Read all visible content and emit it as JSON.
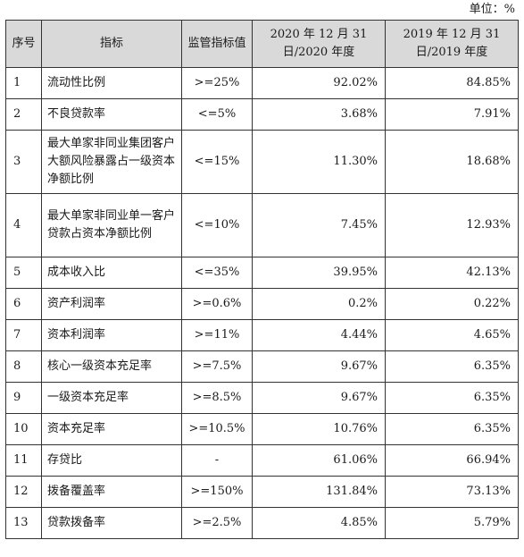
{
  "unit_label": "单位：%",
  "headers": {
    "index": "序号",
    "indicator": "指标",
    "standard": "监管指标值",
    "y2020": "2020 年 12 月 31 日/2020 年度",
    "y2019": "2019 年 12 月 31 日/2019 年度"
  },
  "rows": [
    {
      "no": "1",
      "name": "流动性比例",
      "std": ">=25%",
      "v2020": "92.02%",
      "v2019": "84.85%"
    },
    {
      "no": "2",
      "name": "不良贷款率",
      "std": "<=5%",
      "v2020": "3.68%",
      "v2019": "7.91%"
    },
    {
      "no": "3",
      "name": "最大单家非同业集团客户大额风险暴露占一级资本净额比例",
      "std": "<=15%",
      "v2020": "11.30%",
      "v2019": "18.68%"
    },
    {
      "no": "4",
      "name": "最大单家非同业单一客户贷款占资本净额比例",
      "std": "<=10%",
      "v2020": "7.45%",
      "v2019": "12.93%"
    },
    {
      "no": "5",
      "name": "成本收入比",
      "std": "<=35%",
      "v2020": "39.95%",
      "v2019": "42.13%"
    },
    {
      "no": "6",
      "name": "资产利润率",
      "std": ">=0.6%",
      "v2020": "0.2%",
      "v2019": "0.22%"
    },
    {
      "no": "7",
      "name": "资本利润率",
      "std": ">=11%",
      "v2020": "4.44%",
      "v2019": "4.65%"
    },
    {
      "no": "8",
      "name": "核心一级资本充足率",
      "std": ">=7.5%",
      "v2020": "9.67%",
      "v2019": "6.35%"
    },
    {
      "no": "9",
      "name": "一级资本充足率",
      "std": ">=8.5%",
      "v2020": "9.67%",
      "v2019": "6.35%"
    },
    {
      "no": "10",
      "name": "资本充足率",
      "std": ">=10.5%",
      "v2020": "10.76%",
      "v2019": "6.35%"
    },
    {
      "no": "11",
      "name": "存贷比",
      "std": "-",
      "v2020": "61.06%",
      "v2019": "66.94%"
    },
    {
      "no": "12",
      "name": "拨备覆盖率",
      "std": ">=150%",
      "v2020": "131.84%",
      "v2019": "73.13%"
    },
    {
      "no": "13",
      "name": "贷款拨备率",
      "std": ">=2.5%",
      "v2020": "4.85%",
      "v2019": "5.79%"
    }
  ]
}
